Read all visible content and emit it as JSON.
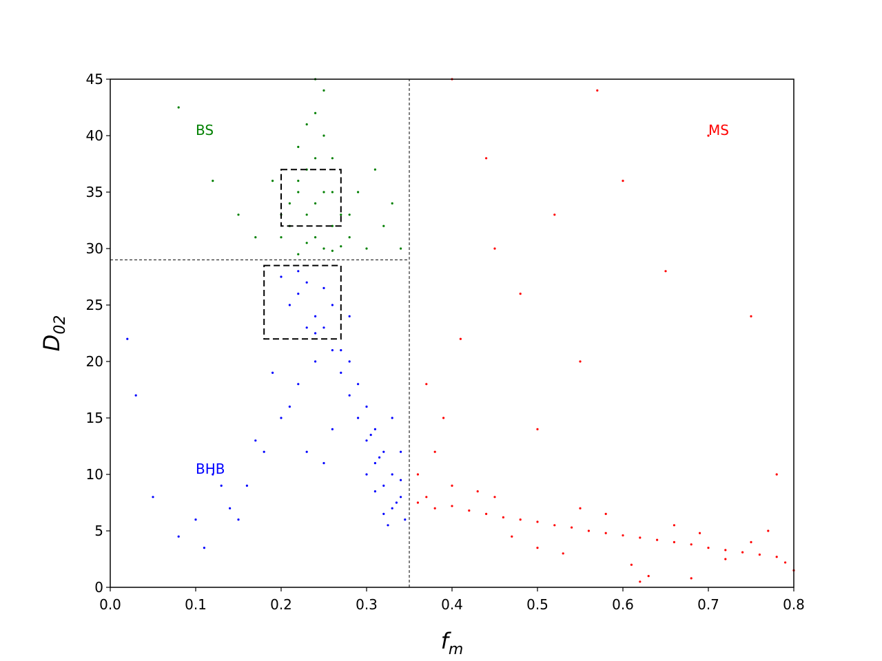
{
  "chart_data": {
    "type": "scatter",
    "xlabel": {
      "text": "f",
      "subscript": "m"
    },
    "ylabel": {
      "text": "D",
      "subscript": "02"
    },
    "xlim": [
      0,
      0.8
    ],
    "ylim": [
      0,
      45
    ],
    "xticks": [
      {
        "value": 0,
        "label": "0.0"
      },
      0.1,
      0.2,
      0.3,
      0.4,
      0.5,
      0.6,
      0.7,
      0.8
    ],
    "yticks": [
      0,
      5,
      10,
      15,
      20,
      25,
      30,
      35,
      40,
      45
    ],
    "series": [
      {
        "color": "#008000",
        "x": [
          0.24,
          0.23,
          0.25,
          0.22,
          0.26,
          0.24,
          0.23,
          0.25,
          0.21,
          0.27,
          0.24,
          0.22,
          0.26,
          0.25,
          0.23,
          0.28,
          0.2,
          0.3,
          0.19,
          0.32,
          0.24,
          0.26,
          0.22,
          0.29,
          0.17,
          0.33,
          0.25,
          0.23,
          0.27,
          0.21,
          0.31,
          0.15,
          0.12,
          0.08,
          0.34,
          0.24,
          0.26,
          0.2,
          0.28,
          0.22
        ],
        "y": [
          34,
          33,
          35,
          36,
          32,
          31,
          37,
          30,
          34,
          33,
          38,
          29.5,
          35,
          40,
          30.5,
          31,
          33,
          30,
          36,
          32,
          42,
          29.8,
          39,
          35,
          31,
          34,
          44,
          41,
          30.2,
          32,
          37,
          33,
          36,
          42.5,
          30,
          45,
          38,
          31,
          33,
          35
        ]
      },
      {
        "color": "#0000ff",
        "x": [
          0.22,
          0.23,
          0.21,
          0.24,
          0.25,
          0.22,
          0.23,
          0.26,
          0.2,
          0.24,
          0.27,
          0.28,
          0.29,
          0.3,
          0.31,
          0.32,
          0.33,
          0.34,
          0.345,
          0.33,
          0.32,
          0.31,
          0.3,
          0.29,
          0.28,
          0.27,
          0.26,
          0.25,
          0.24,
          0.22,
          0.2,
          0.18,
          0.16,
          0.14,
          0.12,
          0.1,
          0.08,
          0.05,
          0.03,
          0.02,
          0.34,
          0.33,
          0.32,
          0.31,
          0.3,
          0.28,
          0.26,
          0.25,
          0.23,
          0.21,
          0.19,
          0.17,
          0.15,
          0.13,
          0.11,
          0.34,
          0.335,
          0.325,
          0.315,
          0.305
        ],
        "y": [
          26,
          27,
          25,
          24,
          26.5,
          28,
          23,
          25,
          27.5,
          22.5,
          21,
          20,
          18,
          16,
          14,
          12,
          10,
          8,
          6,
          7,
          9,
          11,
          13,
          15,
          17,
          19,
          21,
          23,
          20,
          18,
          15,
          12,
          9,
          7,
          10,
          6,
          4.5,
          8,
          17,
          22,
          12,
          15,
          6.5,
          8.5,
          10,
          24,
          14,
          11,
          12,
          16,
          19,
          13,
          6,
          9,
          3.5,
          9.5,
          7.5,
          5.5,
          11.5,
          13.5
        ]
      },
      {
        "color": "#ff0000",
        "x": [
          0.36,
          0.37,
          0.38,
          0.4,
          0.42,
          0.44,
          0.46,
          0.48,
          0.5,
          0.52,
          0.54,
          0.56,
          0.58,
          0.6,
          0.62,
          0.64,
          0.66,
          0.68,
          0.7,
          0.72,
          0.74,
          0.76,
          0.78,
          0.79,
          0.8,
          0.36,
          0.38,
          0.4,
          0.43,
          0.45,
          0.47,
          0.5,
          0.53,
          0.55,
          0.58,
          0.61,
          0.63,
          0.66,
          0.69,
          0.72,
          0.75,
          0.77,
          0.37,
          0.39,
          0.41,
          0.45,
          0.48,
          0.52,
          0.57,
          0.6,
          0.65,
          0.7,
          0.75,
          0.62,
          0.68,
          0.55,
          0.5,
          0.44,
          0.4,
          0.78
        ],
        "y": [
          7.5,
          8,
          7,
          7.2,
          6.8,
          6.5,
          6.2,
          6,
          5.8,
          5.5,
          5.3,
          5,
          4.8,
          4.6,
          4.4,
          4.2,
          4,
          3.8,
          3.5,
          3.3,
          3.1,
          2.9,
          2.7,
          2.2,
          1.5,
          10,
          12,
          9,
          8.5,
          8,
          4.5,
          3.5,
          3,
          7,
          6.5,
          2,
          1,
          5.5,
          4.8,
          2.5,
          4,
          5,
          18,
          15,
          22,
          30,
          26,
          33,
          44,
          36,
          28,
          40,
          24,
          0.5,
          0.8,
          20,
          14,
          38,
          45,
          10
        ]
      }
    ],
    "annotations": [
      {
        "text": "BS",
        "x": 0.1,
        "y": 40.5,
        "color": "#008000"
      },
      {
        "text": "MS",
        "x": 0.7,
        "y": 40.5,
        "color": "#ff0000"
      },
      {
        "text": "BHB",
        "x": 0.1,
        "y": 10.5,
        "color": "#0000ff"
      }
    ],
    "lines": [
      {
        "x": [
          0.35,
          0.35
        ],
        "y": [
          0,
          45
        ]
      },
      {
        "x": [
          0,
          0.35
        ],
        "y": [
          29,
          29
        ]
      }
    ],
    "boxes": [
      {
        "x": [
          0.2,
          0.27
        ],
        "y": [
          32,
          37
        ]
      },
      {
        "x": [
          0.18,
          0.27
        ],
        "y": [
          22,
          28.5
        ]
      }
    ]
  }
}
